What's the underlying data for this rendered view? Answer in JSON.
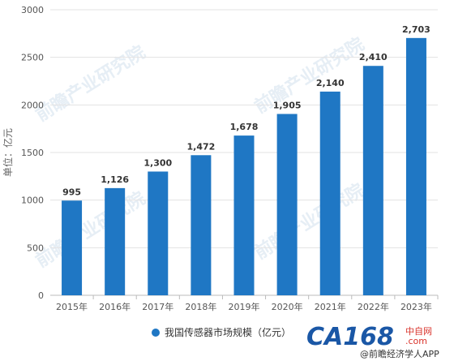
{
  "chart_data": {
    "type": "bar",
    "title": "",
    "xlabel": "",
    "ylabel": "单位：亿元",
    "ylim": [
      0,
      3000
    ],
    "yticks": [
      0,
      500,
      1000,
      1500,
      2000,
      2500,
      3000
    ],
    "categories": [
      "2015年",
      "2016年",
      "2017年",
      "2018年",
      "2019年",
      "2020年",
      "2021年",
      "2022年",
      "2023年"
    ],
    "series": [
      {
        "name": "我国传感器市场规模（亿元）",
        "values": [
          995,
          1126,
          1300,
          1472,
          1678,
          1905,
          2140,
          2410,
          2703
        ],
        "labels": [
          "995",
          "1,126",
          "1,300",
          "1,472",
          "1,678",
          "1,905",
          "2,140",
          "2,410",
          "2,703"
        ]
      }
    ],
    "grid": true,
    "legend_position": "bottom-center",
    "bar_color": "#1f77c4"
  },
  "branding": {
    "watermark": "前瞻产业研究院",
    "logo_text": "CA168",
    "logo_sub": "中自网",
    "logo_domain": ".com",
    "footer": "@前瞻经济学人APP"
  }
}
